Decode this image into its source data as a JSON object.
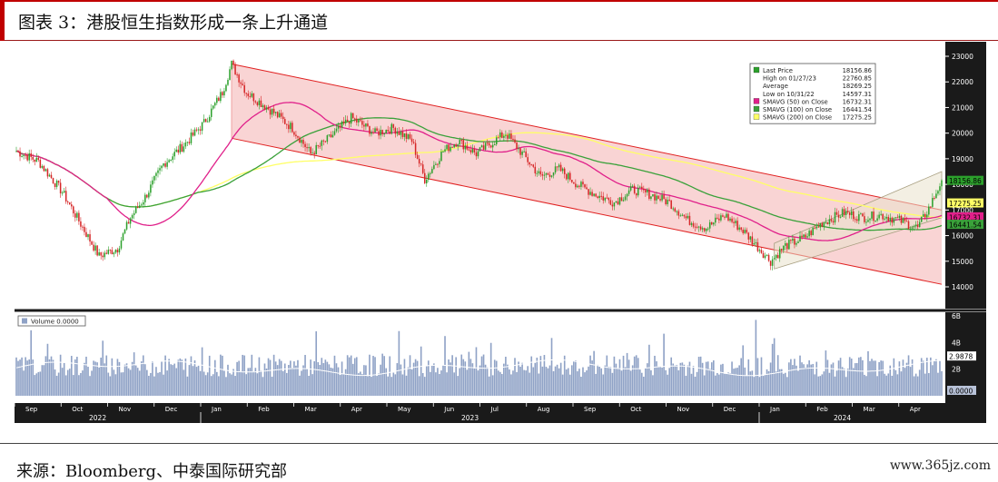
{
  "figure": {
    "title": "图表 3：港股恒生指数形成一条上升通道",
    "source": "来源：Bloomberg、中泰国际研究部",
    "watermark": "www.365jz.com"
  },
  "colors": {
    "up": "#2ca02c",
    "down": "#d62728",
    "channel_fill": "#f7c6c6",
    "channel_line": "#e02020",
    "sma50": "#e0208a",
    "sma100": "#3aa13a",
    "sma200": "#ffff66",
    "volume": "#8fa2c6",
    "axis_bg": "#1a1a1a"
  },
  "chart_data": {
    "type": "candlestick",
    "price_axis": {
      "ylim": [
        14000,
        23000
      ],
      "ticks": [
        "23000",
        "22000",
        "21000",
        "20000",
        "19000",
        "18000",
        "17000",
        "16000",
        "15000",
        "14000"
      ]
    },
    "volume_axis": {
      "ylim": [
        0,
        6
      ],
      "ticks": [
        "6B",
        "4B",
        "2B"
      ]
    },
    "x_axis": {
      "months": [
        "Sep",
        "Oct",
        "Nov",
        "Dec",
        "Jan",
        "Feb",
        "Mar",
        "Apr",
        "May",
        "Jun",
        "Jul",
        "Aug",
        "Sep",
        "Oct",
        "Nov",
        "Dec",
        "Jan",
        "Feb",
        "Mar",
        "Apr"
      ],
      "years": [
        "2022",
        "2023",
        "2024"
      ]
    },
    "price_path": [
      {
        "d": 0,
        "v": 19300
      },
      {
        "d": 12,
        "v": 18900
      },
      {
        "d": 25,
        "v": 17700
      },
      {
        "d": 45,
        "v": 15200
      },
      {
        "d": 55,
        "v": 15500
      },
      {
        "d": 62,
        "v": 16700
      },
      {
        "d": 70,
        "v": 17500
      },
      {
        "d": 80,
        "v": 18800
      },
      {
        "d": 92,
        "v": 19600
      },
      {
        "d": 102,
        "v": 20400
      },
      {
        "d": 112,
        "v": 21600
      },
      {
        "d": 117,
        "v": 22700
      },
      {
        "d": 125,
        "v": 21600
      },
      {
        "d": 140,
        "v": 20800
      },
      {
        "d": 150,
        "v": 20200
      },
      {
        "d": 160,
        "v": 19200
      },
      {
        "d": 170,
        "v": 19800
      },
      {
        "d": 182,
        "v": 20600
      },
      {
        "d": 195,
        "v": 20000
      },
      {
        "d": 205,
        "v": 20200
      },
      {
        "d": 215,
        "v": 19700
      },
      {
        "d": 222,
        "v": 18200
      },
      {
        "d": 232,
        "v": 19300
      },
      {
        "d": 240,
        "v": 19700
      },
      {
        "d": 250,
        "v": 19200
      },
      {
        "d": 258,
        "v": 19600
      },
      {
        "d": 266,
        "v": 20000
      },
      {
        "d": 275,
        "v": 19200
      },
      {
        "d": 285,
        "v": 18300
      },
      {
        "d": 295,
        "v": 18600
      },
      {
        "d": 305,
        "v": 18000
      },
      {
        "d": 315,
        "v": 17600
      },
      {
        "d": 325,
        "v": 17300
      },
      {
        "d": 335,
        "v": 17800
      },
      {
        "d": 345,
        "v": 17600
      },
      {
        "d": 355,
        "v": 17300
      },
      {
        "d": 365,
        "v": 16600
      },
      {
        "d": 375,
        "v": 16300
      },
      {
        "d": 385,
        "v": 16800
      },
      {
        "d": 395,
        "v": 16200
      },
      {
        "d": 405,
        "v": 15400
      },
      {
        "d": 410,
        "v": 15000
      },
      {
        "d": 418,
        "v": 15600
      },
      {
        "d": 428,
        "v": 15900
      },
      {
        "d": 438,
        "v": 16500
      },
      {
        "d": 450,
        "v": 16900
      },
      {
        "d": 460,
        "v": 16700
      },
      {
        "d": 470,
        "v": 16800
      },
      {
        "d": 480,
        "v": 16600
      },
      {
        "d": 490,
        "v": 16300
      },
      {
        "d": 497,
        "v": 17200
      },
      {
        "d": 503,
        "v": 18156.86
      }
    ],
    "candles": [],
    "channel": {
      "upper": [
        [
          117,
          22700
        ],
        [
          503,
          17000
        ]
      ],
      "lower": [
        [
          117,
          19800
        ],
        [
          503,
          14100
        ]
      ]
    },
    "rising_channel": {
      "upper": [
        [
          412,
          15700
        ],
        [
          503,
          18500
        ]
      ],
      "lower": [
        [
          412,
          14700
        ],
        [
          503,
          16700
        ]
      ]
    },
    "legend": {
      "placement": "top-right",
      "rows": [
        {
          "label": "Last Price",
          "value": "18156.86",
          "color": "#2ca02c"
        },
        {
          "label": "High on 01/27/23",
          "value": "22760.85",
          "color": null
        },
        {
          "label": "Average",
          "value": "18269.25",
          "color": null
        },
        {
          "label": "Low on 10/31/22",
          "value": "14597.31",
          "color": null
        },
        {
          "label": "SMAVG (50)  on Close",
          "value": "16732.31",
          "color": "#e0208a"
        },
        {
          "label": "SMAVG (100)  on Close",
          "value": "16441.54",
          "color": "#3aa13a"
        },
        {
          "label": "SMAVG (200)  on Close",
          "value": "17275.25",
          "color": "#ffff66"
        }
      ]
    },
    "value_tags": [
      {
        "text": "18156.86",
        "value": 18156.86,
        "color": "#2ca02c"
      },
      {
        "text": "17275.25",
        "value": 17275.25,
        "color": "#ffff66"
      },
      {
        "text": "16732.31",
        "value": 16732.31,
        "color": "#e0208a"
      },
      {
        "text": "16441.54",
        "value": 16441.54,
        "color": "#3aa13a"
      }
    ],
    "volume_legend": "Volume 0.0000",
    "volume_tags": [
      {
        "text": "2.9878",
        "value": 2.9878
      },
      {
        "text": "0.0000",
        "value": 0
      }
    ]
  }
}
